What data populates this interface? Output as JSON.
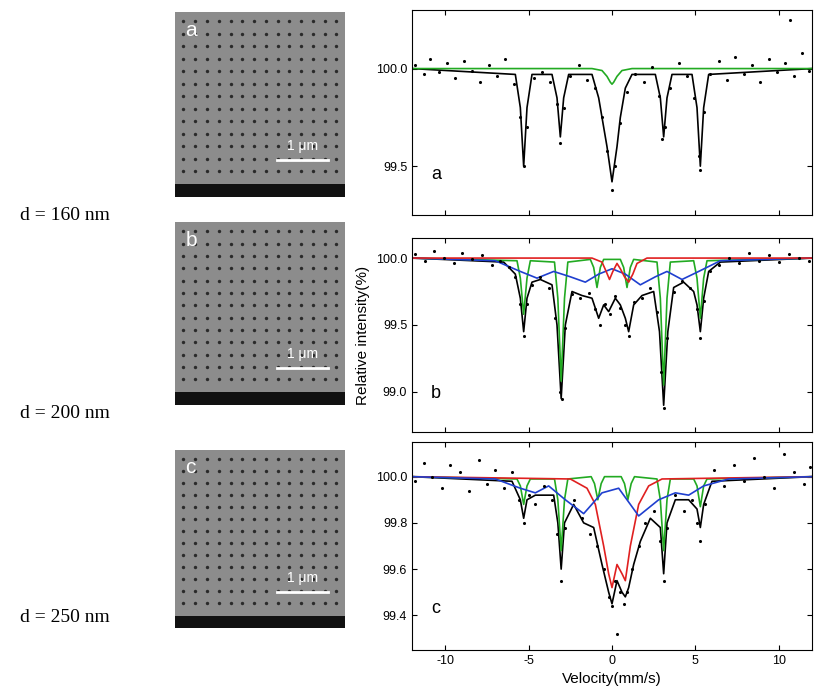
{
  "chart_data": [
    {
      "type": "line",
      "annotations": [
        "a"
      ],
      "xlim": [
        -12,
        12
      ],
      "xticks": [
        -10,
        -5,
        0,
        5,
        10
      ],
      "ylim": [
        99.25,
        100.3
      ],
      "yticks": [
        99.5,
        {
          "value": 100,
          "label": "100.0"
        }
      ],
      "tick_labels": "y",
      "series": [
        {
          "type": "scatter",
          "color": "#000000",
          "marker": "o",
          "x": [
            -11.8,
            -11.3,
            -10.9,
            -10.4,
            -9.9,
            -9.4,
            -8.9,
            -8.4,
            -7.9,
            -7.4,
            -6.9,
            -6.4,
            -5.9,
            -5.5,
            -5.3,
            -5.1,
            -4.7,
            -4.2,
            -3.7,
            -3.3,
            -3.1,
            -2.9,
            -2.5,
            -2.0,
            -1.5,
            -1.0,
            -0.6,
            -0.3,
            0.0,
            0.2,
            0.5,
            0.9,
            1.4,
            1.9,
            2.4,
            2.8,
            3.0,
            3.2,
            3.5,
            4.0,
            4.5,
            4.9,
            5.2,
            5.3,
            5.5,
            5.9,
            6.4,
            6.9,
            7.4,
            7.9,
            8.4,
            8.9,
            9.4,
            9.9,
            10.4,
            10.7,
            10.9,
            11.4,
            11.8
          ],
          "values": [
            100.02,
            99.97,
            100.05,
            99.98,
            100.03,
            99.95,
            100.04,
            99.99,
            99.93,
            100.02,
            99.96,
            100.05,
            99.92,
            99.75,
            99.5,
            99.7,
            99.95,
            99.98,
            99.93,
            99.82,
            99.62,
            99.8,
            99.96,
            100.02,
            99.94,
            99.9,
            99.75,
            99.58,
            99.38,
            99.5,
            99.72,
            99.88,
            99.97,
            99.93,
            100.01,
            99.86,
            99.64,
            99.7,
            99.9,
            100.03,
            99.96,
            99.85,
            99.55,
            99.48,
            99.78,
            99.97,
            100.04,
            99.94,
            100.06,
            99.97,
            100.02,
            99.93,
            100.05,
            99.98,
            100.03,
            100.25,
            99.96,
            100.08,
            99.99
          ]
        },
        {
          "type": "line",
          "color": "#000000",
          "line_style": "solid",
          "x": [
            -12,
            -5.8,
            -5.5,
            -5.3,
            -5.1,
            -4.8,
            -3.6,
            -3.3,
            -3.1,
            -2.9,
            -2.6,
            -1.2,
            -0.8,
            -0.5,
            -0.3,
            0.0,
            0.3,
            0.5,
            0.8,
            1.2,
            2.6,
            2.9,
            3.1,
            3.3,
            3.6,
            4.8,
            5.1,
            5.3,
            5.5,
            5.8,
            12
          ],
          "values": [
            100.0,
            99.97,
            99.8,
            99.5,
            99.8,
            99.97,
            99.97,
            99.85,
            99.65,
            99.85,
            99.97,
            99.97,
            99.85,
            99.7,
            99.6,
            99.42,
            99.6,
            99.75,
            99.9,
            99.97,
            99.97,
            99.85,
            99.65,
            99.85,
            99.97,
            99.97,
            99.8,
            99.5,
            99.8,
            99.97,
            100.0
          ]
        },
        {
          "type": "line",
          "color": "#22aa22",
          "line_style": "solid",
          "x": [
            -12,
            -1.2,
            -0.6,
            -0.3,
            -0.1,
            0.0,
            0.1,
            0.3,
            0.6,
            1.2,
            12
          ],
          "values": [
            100.0,
            100.0,
            99.99,
            99.96,
            99.93,
            99.92,
            99.93,
            99.96,
            99.99,
            100.0,
            100.0
          ]
        }
      ]
    },
    {
      "type": "line",
      "annotations": [
        "b"
      ],
      "y_label": "Relative intensity(%)",
      "xlim": [
        -12,
        12
      ],
      "xticks": [
        -10,
        -5,
        0,
        5,
        10
      ],
      "ylim": [
        98.7,
        100.15
      ],
      "yticks": [
        {
          "value": 99,
          "label": "99.0"
        },
        99.5,
        {
          "value": 100,
          "label": "100.0"
        }
      ],
      "tick_labels": "y",
      "series": [
        {
          "type": "scatter",
          "color": "#000000",
          "marker": "o",
          "x": [
            -11.8,
            -11.2,
            -10.7,
            -10.1,
            -9.5,
            -9.0,
            -8.4,
            -7.8,
            -7.2,
            -6.7,
            -6.2,
            -5.8,
            -5.5,
            -5.3,
            -5.1,
            -4.8,
            -4.3,
            -3.8,
            -3.4,
            -3.1,
            -3.0,
            -2.8,
            -2.4,
            -1.9,
            -1.4,
            -1.0,
            -0.7,
            -0.4,
            -0.1,
            0.2,
            0.5,
            0.8,
            1.0,
            1.3,
            1.8,
            2.3,
            2.7,
            2.95,
            3.1,
            3.3,
            3.7,
            4.2,
            4.7,
            5.1,
            5.3,
            5.5,
            5.9,
            6.4,
            7.0,
            7.6,
            8.2,
            8.8,
            9.4,
            10.0,
            10.6,
            11.2,
            11.8
          ],
          "values": [
            100.03,
            99.98,
            100.05,
            100.0,
            99.96,
            100.04,
            99.99,
            100.02,
            99.95,
            99.98,
            99.93,
            99.86,
            99.66,
            99.42,
            99.66,
            99.8,
            99.86,
            99.78,
            99.55,
            99.0,
            98.95,
            99.48,
            99.73,
            99.7,
            99.74,
            99.62,
            99.5,
            99.66,
            99.58,
            99.72,
            99.63,
            99.5,
            99.42,
            99.67,
            99.7,
            99.78,
            99.6,
            99.15,
            98.88,
            99.4,
            99.75,
            99.83,
            99.78,
            99.62,
            99.4,
            99.68,
            99.9,
            99.95,
            100.0,
            99.96,
            100.04,
            99.98,
            100.02,
            99.97,
            100.03,
            100.0,
            99.98
          ]
        },
        {
          "type": "line",
          "color": "#000000",
          "line_style": "solid",
          "x": [
            -12,
            -6.5,
            -5.8,
            -5.5,
            -5.3,
            -5.1,
            -4.8,
            -4.3,
            -3.6,
            -3.3,
            -3.05,
            -2.8,
            -2.4,
            -1.8,
            -1.2,
            -0.8,
            -0.5,
            -0.2,
            0.2,
            0.5,
            0.8,
            1.0,
            1.3,
            1.8,
            2.5,
            2.85,
            3.1,
            3.35,
            3.7,
            4.3,
            4.9,
            5.1,
            5.3,
            5.5,
            5.8,
            6.5,
            12
          ],
          "values": [
            100.0,
            99.97,
            99.88,
            99.7,
            99.45,
            99.7,
            99.82,
            99.84,
            99.8,
            99.5,
            98.95,
            99.5,
            99.75,
            99.72,
            99.7,
            99.55,
            99.65,
            99.6,
            99.7,
            99.65,
            99.55,
            99.45,
            99.65,
            99.72,
            99.75,
            99.45,
            98.9,
            99.45,
            99.78,
            99.82,
            99.75,
            99.65,
            99.45,
            99.7,
            99.9,
            99.97,
            100.0
          ]
        },
        {
          "type": "line",
          "color": "#22aa22",
          "line_style": "solid",
          "x": [
            -12,
            -5.7,
            -5.5,
            -5.3,
            -5.1,
            -4.9,
            -3.45,
            -3.25,
            -3.05,
            -2.85,
            -2.65,
            -1.3,
            -1.1,
            -0.9,
            -0.7,
            -0.5,
            0.5,
            0.7,
            0.9,
            1.1,
            1.3,
            2.7,
            2.9,
            3.1,
            3.3,
            3.5,
            4.9,
            5.1,
            5.3,
            5.5,
            5.7,
            12
          ],
          "values": [
            100.0,
            99.98,
            99.85,
            99.58,
            99.85,
            99.98,
            99.97,
            99.7,
            99.08,
            99.7,
            99.97,
            99.99,
            99.93,
            99.78,
            99.93,
            99.99,
            99.99,
            99.93,
            99.78,
            99.93,
            99.99,
            99.97,
            99.7,
            99.05,
            99.7,
            99.97,
            99.98,
            99.85,
            99.55,
            99.85,
            99.98,
            100.0
          ]
        },
        {
          "type": "line",
          "color": "#1f3fcf",
          "line_style": "solid",
          "x": [
            -12,
            -7,
            -5.5,
            -4.5,
            -3.5,
            -2.5,
            -1.6,
            -0.8,
            0.0,
            0.8,
            1.7,
            2.6,
            3.3,
            4.2,
            5.2,
            6.5,
            12
          ],
          "values": [
            100.0,
            99.98,
            99.9,
            99.85,
            99.9,
            99.86,
            99.82,
            99.88,
            99.92,
            99.88,
            99.8,
            99.86,
            99.9,
            99.84,
            99.9,
            99.98,
            100.0
          ]
        },
        {
          "type": "line",
          "color": "#e02020",
          "line_style": "solid",
          "x": [
            -12,
            -1.2,
            -0.6,
            -0.35,
            -0.15,
            0.05,
            0.3,
            0.5,
            0.75,
            1.0,
            1.25,
            1.5,
            2.1,
            12
          ],
          "values": [
            100.0,
            100.0,
            99.97,
            99.9,
            99.84,
            99.9,
            99.96,
            99.92,
            99.86,
            99.82,
            99.88,
            99.96,
            100.0,
            100.0
          ]
        }
      ]
    },
    {
      "type": "line",
      "annotations": [
        "c"
      ],
      "x_label": "Velocity(mm/s)",
      "xlim": [
        -12,
        12
      ],
      "xticks": [
        -10,
        -5,
        0,
        5,
        10
      ],
      "ylim": [
        99.25,
        100.15
      ],
      "yticks": [
        99.4,
        99.6,
        99.8,
        {
          "value": 100,
          "label": "100.0"
        }
      ],
      "series": [
        {
          "type": "scatter",
          "color": "#000000",
          "marker": "o",
          "x": [
            -11.8,
            -11.3,
            -10.8,
            -10.2,
            -9.7,
            -9.1,
            -8.6,
            -8.0,
            -7.5,
            -7.0,
            -6.5,
            -6.0,
            -5.6,
            -5.3,
            -5.0,
            -4.6,
            -4.1,
            -3.6,
            -3.3,
            -3.05,
            -2.8,
            -2.3,
            -1.8,
            -1.3,
            -0.9,
            -0.5,
            -0.2,
            0.0,
            0.2,
            0.3,
            0.5,
            0.7,
            0.9,
            1.2,
            1.6,
            2.0,
            2.5,
            2.9,
            3.1,
            3.3,
            3.8,
            4.3,
            4.8,
            5.1,
            5.3,
            5.6,
            6.1,
            6.7,
            7.3,
            7.9,
            8.5,
            9.1,
            9.7,
            10.3,
            10.9,
            11.5,
            11.9
          ],
          "values": [
            99.98,
            100.06,
            100.0,
            99.95,
            100.05,
            100.02,
            99.94,
            100.07,
            99.97,
            100.03,
            99.95,
            100.02,
            99.9,
            99.8,
            99.92,
            99.88,
            99.96,
            99.9,
            99.75,
            99.55,
            99.78,
            99.9,
            99.82,
            99.75,
            99.7,
            99.6,
            99.48,
            99.44,
            99.55,
            99.32,
            99.5,
            99.45,
            99.5,
            99.6,
            99.7,
            99.8,
            99.85,
            99.72,
            99.55,
            99.78,
            99.92,
            99.85,
            99.9,
            99.8,
            99.72,
            99.88,
            100.03,
            99.96,
            100.05,
            99.98,
            100.08,
            100.0,
            99.95,
            100.1,
            100.02,
            99.97,
            100.04
          ]
        },
        {
          "type": "line",
          "color": "#000000",
          "line_style": "solid",
          "x": [
            -12,
            -6,
            -5.5,
            -5.3,
            -5.1,
            -4.6,
            -3.5,
            -3.25,
            -3.05,
            -2.85,
            -2.3,
            -1.7,
            -1.1,
            -0.6,
            -0.2,
            0.0,
            0.3,
            0.6,
            0.8,
            1.0,
            1.3,
            1.7,
            2.3,
            2.9,
            3.1,
            3.3,
            3.8,
            4.6,
            5.1,
            5.3,
            5.5,
            6,
            12
          ],
          "values": [
            100.0,
            99.98,
            99.9,
            99.82,
            99.9,
            99.92,
            99.92,
            99.8,
            99.6,
            99.8,
            99.88,
            99.8,
            99.78,
            99.62,
            99.5,
            99.45,
            99.55,
            99.5,
            99.48,
            99.52,
            99.62,
            99.72,
            99.82,
            99.78,
            99.58,
            99.8,
            99.9,
            99.9,
            99.86,
            99.78,
            99.88,
            99.98,
            100.0
          ]
        },
        {
          "type": "line",
          "color": "#22aa22",
          "line_style": "solid",
          "x": [
            -12,
            -5.7,
            -5.5,
            -5.3,
            -5.1,
            -4.9,
            -3.45,
            -3.25,
            -3.05,
            -2.85,
            -2.65,
            -1.25,
            -1.05,
            -0.85,
            -0.65,
            -0.45,
            0.55,
            0.75,
            0.95,
            1.15,
            1.35,
            2.7,
            2.9,
            3.1,
            3.3,
            3.5,
            4.9,
            5.1,
            5.3,
            5.5,
            5.7,
            12
          ],
          "values": [
            100.0,
            99.99,
            99.96,
            99.88,
            99.96,
            99.99,
            99.99,
            99.9,
            99.68,
            99.9,
            99.99,
            100.0,
            99.97,
            99.9,
            99.97,
            100.0,
            100.0,
            99.97,
            99.9,
            99.97,
            100.0,
            99.99,
            99.9,
            99.68,
            99.9,
            99.99,
            99.99,
            99.96,
            99.87,
            99.96,
            99.99,
            100.0
          ]
        },
        {
          "type": "line",
          "color": "#e02020",
          "line_style": "solid",
          "x": [
            -12,
            -2.5,
            -1.5,
            -1.0,
            -0.5,
            -0.2,
            0.0,
            0.3,
            0.6,
            0.8,
            1.1,
            1.6,
            2.2,
            3.0,
            12
          ],
          "values": [
            100.0,
            99.99,
            99.95,
            99.88,
            99.7,
            99.58,
            99.52,
            99.62,
            99.58,
            99.55,
            99.7,
            99.88,
            99.96,
            99.99,
            100.0
          ]
        },
        {
          "type": "line",
          "color": "#1f3fcf",
          "line_style": "solid",
          "x": [
            -12,
            -7,
            -5.5,
            -4.6,
            -3.8,
            -2.8,
            -1.7,
            -0.6,
            0.4,
            1.6,
            2.8,
            3.8,
            4.6,
            5.5,
            7,
            12
          ],
          "values": [
            100.0,
            99.99,
            99.95,
            99.93,
            99.96,
            99.9,
            99.84,
            99.93,
            99.95,
            99.83,
            99.9,
            99.93,
            99.92,
            99.96,
            99.99,
            100.0
          ]
        }
      ]
    }
  ],
  "images": [
    {
      "label": "a",
      "scale_bar": "1 μm",
      "caption": "d = 160 nm"
    },
    {
      "label": "b",
      "scale_bar": "1 μm",
      "caption": "d = 200 nm"
    },
    {
      "label": "c",
      "scale_bar": "1 μm",
      "caption": "d = 250 nm"
    }
  ]
}
